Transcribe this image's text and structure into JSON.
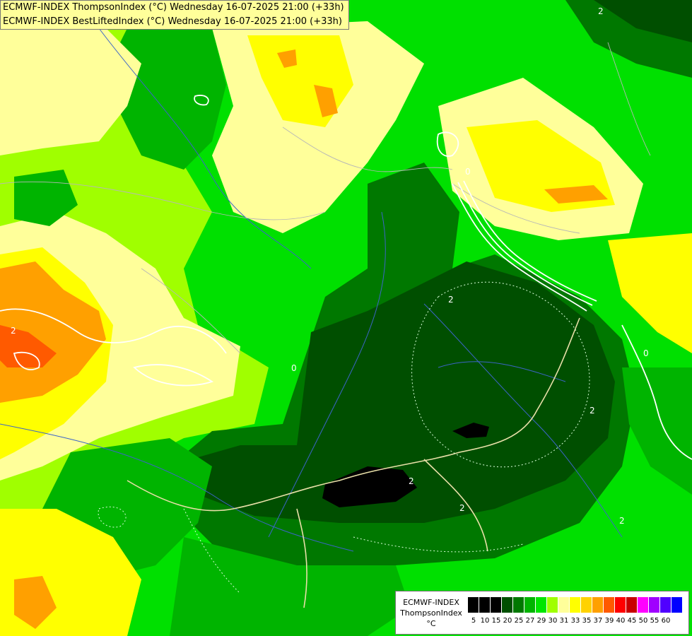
{
  "title": {
    "line1": "ECMWF-INDEX ThompsonIndex (°C) Wednesday 16-07-2025 21:00 (+33h)",
    "line2": "ECMWF-INDEX BestLiftedIndex (°C) Wednesday 16-07-2025 21:00 (+33h)"
  },
  "legend": {
    "model": "ECMWF-INDEX",
    "parameter": "ThompsonIndex",
    "unit": "°C",
    "classes": [
      {
        "label": "5",
        "color": "#000000"
      },
      {
        "label": "10",
        "color": "#000000"
      },
      {
        "label": "15",
        "color": "#000000"
      },
      {
        "label": "20",
        "color": "#004f00"
      },
      {
        "label": "25",
        "color": "#007800"
      },
      {
        "label": "27",
        "color": "#00b400"
      },
      {
        "label": "29",
        "color": "#00e600"
      },
      {
        "label": "30",
        "color": "#a0ff00"
      },
      {
        "label": "31",
        "color": "#ffff9a"
      },
      {
        "label": "33",
        "color": "#ffff00"
      },
      {
        "label": "35",
        "color": "#ffd200"
      },
      {
        "label": "37",
        "color": "#ffa000"
      },
      {
        "label": "39",
        "color": "#ff5a00"
      },
      {
        "label": "40",
        "color": "#ff0000"
      },
      {
        "label": "45",
        "color": "#c80000"
      },
      {
        "label": "50",
        "color": "#ff00ff"
      },
      {
        "label": "55",
        "color": "#a000ff"
      },
      {
        "label": "60",
        "color": "#5000ff"
      },
      {
        "label": "",
        "color": "#0000ff"
      }
    ]
  },
  "contour_labels": [
    "2",
    "2",
    "2",
    "2",
    "2",
    "2",
    "2",
    "0",
    "0",
    "0"
  ],
  "colors": {
    "background": "#00d800",
    "border": "#e8dfa8",
    "river": "#3c64c8",
    "contour": "#ffffff"
  }
}
